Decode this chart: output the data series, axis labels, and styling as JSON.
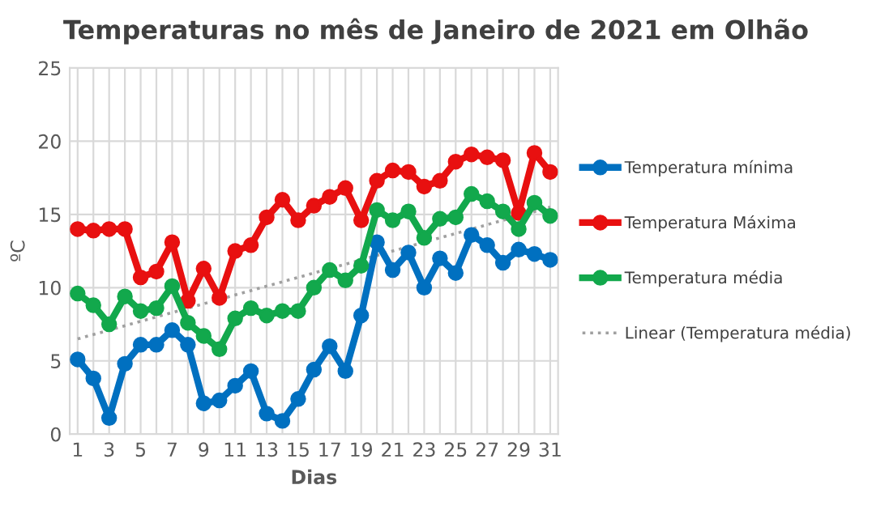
{
  "chart_data": {
    "type": "line",
    "title": "Temperaturas no mês de Janeiro de 2021 em Olhão",
    "xlabel": "Dias",
    "ylabel": "ºC",
    "x": [
      1,
      2,
      3,
      4,
      5,
      6,
      7,
      8,
      9,
      10,
      11,
      12,
      13,
      14,
      15,
      16,
      17,
      18,
      19,
      20,
      21,
      22,
      23,
      24,
      25,
      26,
      27,
      28,
      29,
      30,
      31
    ],
    "series": [
      {
        "name": "Temperatura mínima",
        "color": "#0070c0",
        "marker": "circle",
        "values": [
          5.1,
          3.8,
          1.1,
          4.8,
          6.1,
          6.1,
          7.1,
          6.1,
          2.1,
          2.3,
          3.3,
          4.3,
          1.4,
          0.9,
          2.4,
          4.4,
          6.0,
          4.3,
          8.1,
          13.1,
          11.2,
          12.4,
          10.0,
          12.0,
          11.0,
          13.6,
          12.9,
          11.7,
          12.6,
          12.3,
          11.9
        ]
      },
      {
        "name": "Temperatura Máxima",
        "color": "#e81010",
        "marker": "circle",
        "values": [
          14.0,
          13.9,
          14.0,
          14.0,
          10.7,
          11.1,
          13.1,
          9.1,
          11.3,
          9.3,
          12.5,
          12.9,
          14.8,
          16.0,
          14.6,
          15.6,
          16.2,
          16.8,
          14.6,
          17.3,
          18.0,
          17.9,
          16.9,
          17.3,
          18.6,
          19.1,
          18.9,
          18.7,
          15.1,
          19.2,
          17.9
        ]
      },
      {
        "name": "Temperatura média",
        "color": "#12a84c",
        "marker": "circle",
        "values": [
          9.6,
          8.8,
          7.5,
          9.4,
          8.4,
          8.6,
          10.1,
          7.6,
          6.7,
          5.8,
          7.9,
          8.6,
          8.1,
          8.4,
          8.4,
          10.0,
          11.2,
          10.5,
          11.5,
          15.3,
          14.6,
          15.2,
          13.4,
          14.7,
          14.8,
          16.4,
          15.9,
          15.2,
          14.0,
          15.8,
          14.9
        ]
      },
      {
        "name": "Linear (Temperatura média)",
        "color": "#a0a0a0",
        "marker": "none",
        "line_style": "dotted",
        "x": [
          1,
          31
        ],
        "values": [
          6.5,
          15.5
        ]
      }
    ],
    "xlim": [
      0.5,
      31.5
    ],
    "xticks": [
      1,
      {
        "value": 2,
        "label": null
      },
      3,
      {
        "value": 4,
        "label": null
      },
      5,
      {
        "value": 6,
        "label": null
      },
      7,
      {
        "value": 8,
        "label": null
      },
      9,
      {
        "value": 10,
        "label": null
      },
      11,
      {
        "value": 12,
        "label": null
      },
      13,
      {
        "value": 14,
        "label": null
      },
      15,
      {
        "value": 16,
        "label": null
      },
      17,
      {
        "value": 18,
        "label": null
      },
      19,
      {
        "value": 20,
        "label": null
      },
      21,
      {
        "value": 22,
        "label": null
      },
      23,
      {
        "value": 24,
        "label": null
      },
      25,
      {
        "value": 26,
        "label": null
      },
      27,
      {
        "value": 28,
        "label": null
      },
      29,
      {
        "value": 30,
        "label": null
      },
      31
    ],
    "ylim": [
      0,
      25
    ],
    "yticks": [
      0,
      5,
      10,
      15,
      20,
      25
    ],
    "grid": true,
    "legend": "right"
  }
}
